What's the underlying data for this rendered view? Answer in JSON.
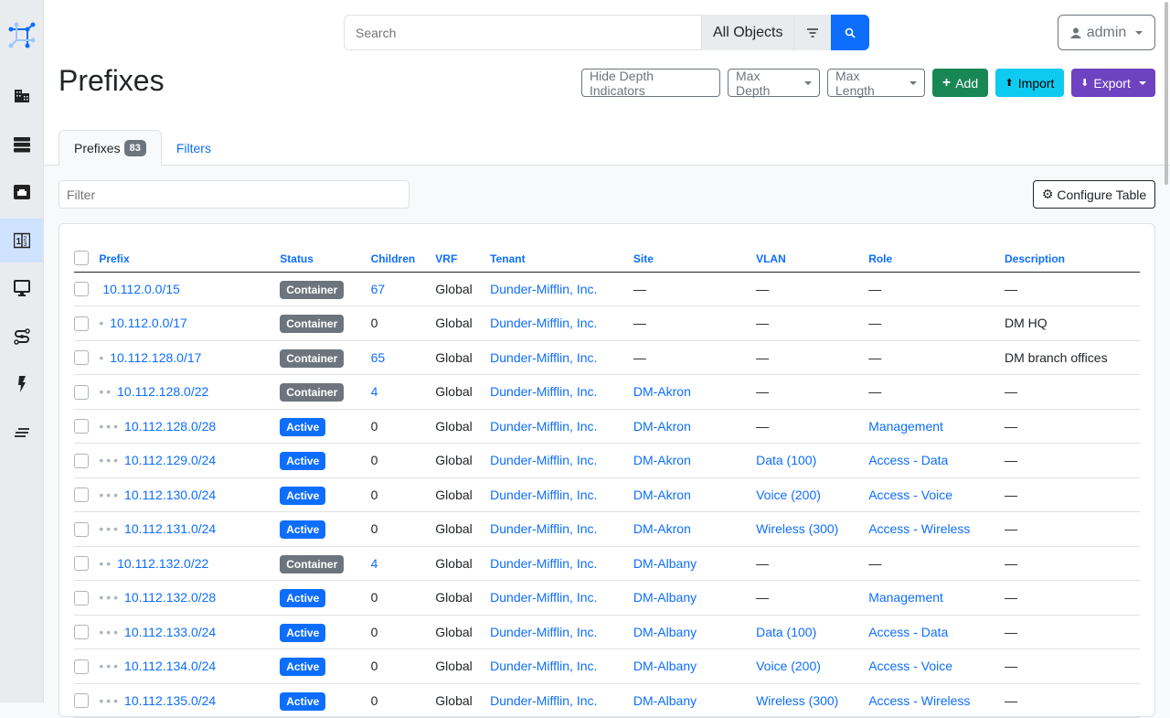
{
  "sidebar": {
    "items": [
      {
        "icon": "building-icon"
      },
      {
        "icon": "server-rack-icon"
      },
      {
        "icon": "ethernet-port-icon"
      },
      {
        "icon": "ipam-numbers-icon",
        "active": true
      },
      {
        "icon": "monitor-icon"
      },
      {
        "icon": "circuit-icon"
      },
      {
        "icon": "power-icon"
      },
      {
        "icon": "menu-lines-icon"
      }
    ]
  },
  "search": {
    "placeholder": "Search",
    "scope": "All Objects"
  },
  "user": {
    "label": "admin"
  },
  "page": {
    "title": "Prefixes"
  },
  "actions": {
    "hide_depth": "Hide Depth Indicators",
    "max_depth": "Max Depth",
    "max_length": "Max Length",
    "add": "Add",
    "import": "Import",
    "export": "Export"
  },
  "colors": {
    "add": "#198754",
    "import": "#0dcaf0",
    "export": "#6f42c1",
    "primary": "#0d6efd",
    "container": "#6c757d",
    "active": "#0d6efd"
  },
  "tabs": {
    "prefixes": "Prefixes",
    "count": "83",
    "filters": "Filters"
  },
  "filter": {
    "placeholder": "Filter"
  },
  "configure": "Configure Table",
  "table": {
    "columns": [
      "Prefix",
      "Status",
      "Children",
      "VRF",
      "Tenant",
      "Site",
      "VLAN",
      "Role",
      "Description"
    ],
    "rows": [
      {
        "depth": 0,
        "prefix": "10.112.0.0/15",
        "status": "Container",
        "children": "67",
        "vrf": "Global",
        "tenant": "Dunder-Mifflin, Inc.",
        "site": "—",
        "vlan": "—",
        "role": "—",
        "description": "—"
      },
      {
        "depth": 1,
        "prefix": "10.112.0.0/17",
        "status": "Container",
        "children": "0",
        "vrf": "Global",
        "tenant": "Dunder-Mifflin, Inc.",
        "site": "—",
        "vlan": "—",
        "role": "—",
        "description": "DM HQ"
      },
      {
        "depth": 1,
        "prefix": "10.112.128.0/17",
        "status": "Container",
        "children": "65",
        "vrf": "Global",
        "tenant": "Dunder-Mifflin, Inc.",
        "site": "—",
        "vlan": "—",
        "role": "—",
        "description": "DM branch offices"
      },
      {
        "depth": 2,
        "prefix": "10.112.128.0/22",
        "status": "Container",
        "children": "4",
        "vrf": "Global",
        "tenant": "Dunder-Mifflin, Inc.",
        "site": "DM-Akron",
        "vlan": "—",
        "role": "—",
        "description": "—"
      },
      {
        "depth": 3,
        "prefix": "10.112.128.0/28",
        "status": "Active",
        "children": "0",
        "vrf": "Global",
        "tenant": "Dunder-Mifflin, Inc.",
        "site": "DM-Akron",
        "vlan": "—",
        "role": "Management",
        "description": "—"
      },
      {
        "depth": 3,
        "prefix": "10.112.129.0/24",
        "status": "Active",
        "children": "0",
        "vrf": "Global",
        "tenant": "Dunder-Mifflin, Inc.",
        "site": "DM-Akron",
        "vlan": "Data (100)",
        "role": "Access - Data",
        "description": "—"
      },
      {
        "depth": 3,
        "prefix": "10.112.130.0/24",
        "status": "Active",
        "children": "0",
        "vrf": "Global",
        "tenant": "Dunder-Mifflin, Inc.",
        "site": "DM-Akron",
        "vlan": "Voice (200)",
        "role": "Access - Voice",
        "description": "—"
      },
      {
        "depth": 3,
        "prefix": "10.112.131.0/24",
        "status": "Active",
        "children": "0",
        "vrf": "Global",
        "tenant": "Dunder-Mifflin, Inc.",
        "site": "DM-Akron",
        "vlan": "Wireless (300)",
        "role": "Access - Wireless",
        "description": "—"
      },
      {
        "depth": 2,
        "prefix": "10.112.132.0/22",
        "status": "Container",
        "children": "4",
        "vrf": "Global",
        "tenant": "Dunder-Mifflin, Inc.",
        "site": "DM-Albany",
        "vlan": "—",
        "role": "—",
        "description": "—"
      },
      {
        "depth": 3,
        "prefix": "10.112.132.0/28",
        "status": "Active",
        "children": "0",
        "vrf": "Global",
        "tenant": "Dunder-Mifflin, Inc.",
        "site": "DM-Albany",
        "vlan": "—",
        "role": "Management",
        "description": "—"
      },
      {
        "depth": 3,
        "prefix": "10.112.133.0/24",
        "status": "Active",
        "children": "0",
        "vrf": "Global",
        "tenant": "Dunder-Mifflin, Inc.",
        "site": "DM-Albany",
        "vlan": "Data (100)",
        "role": "Access - Data",
        "description": "—"
      },
      {
        "depth": 3,
        "prefix": "10.112.134.0/24",
        "status": "Active",
        "children": "0",
        "vrf": "Global",
        "tenant": "Dunder-Mifflin, Inc.",
        "site": "DM-Albany",
        "vlan": "Voice (200)",
        "role": "Access - Voice",
        "description": "—"
      },
      {
        "depth": 3,
        "prefix": "10.112.135.0/24",
        "status": "Active",
        "children": "0",
        "vrf": "Global",
        "tenant": "Dunder-Mifflin, Inc.",
        "site": "DM-Albany",
        "vlan": "Wireless (300)",
        "role": "Access - Wireless",
        "description": "—"
      }
    ]
  }
}
